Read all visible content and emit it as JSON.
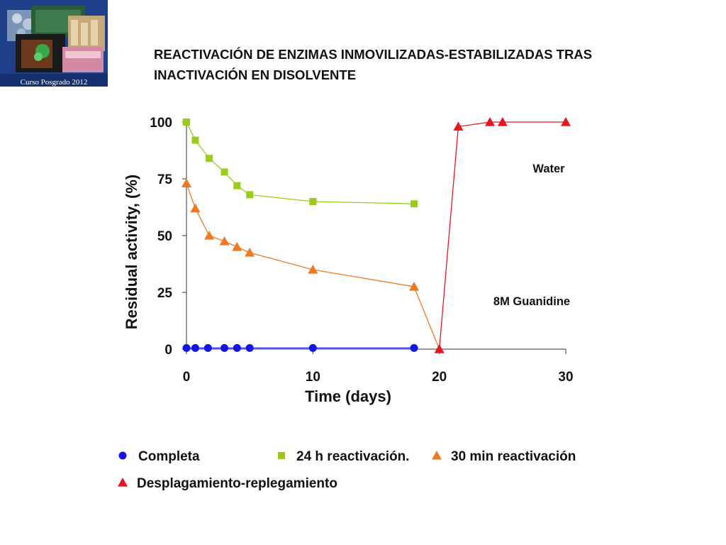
{
  "logo": {
    "caption": "Curso Posgrado 2012"
  },
  "title": {
    "line1": "REACTIVACIÓN DE ENZIMAS INMOVILIZADAS-ESTABILIZADAS TRAS",
    "line2": "INACTIVACIÓN EN DISOLVENTE"
  },
  "colors": {
    "blue": "#1414e6",
    "green": "#99cc1a",
    "orange": "#f07820",
    "red": "#e8141e"
  },
  "chart_data": {
    "type": "line",
    "title": "",
    "xlabel": "Time (days)",
    "ylabel": "Residual activity, (%)",
    "xlim": [
      0,
      30
    ],
    "ylim": [
      0,
      100
    ],
    "xticks": [
      "0",
      "10",
      "20",
      "30"
    ],
    "yticks": [
      "0",
      "25",
      "50",
      "75",
      "100"
    ],
    "annotations": [
      "Water",
      "8M Guanidine"
    ],
    "series": [
      {
        "name": "Completa",
        "marker": "circle",
        "color": "#1414e6",
        "x": [
          0,
          0.7,
          1.7,
          3,
          4,
          5,
          10,
          18
        ],
        "y": [
          0.5,
          0.5,
          0.5,
          0.5,
          0.5,
          0.5,
          0.5,
          0.5
        ]
      },
      {
        "name": "24 h reactivación.",
        "marker": "square",
        "color": "#99cc1a",
        "x": [
          0,
          0.7,
          1.8,
          3,
          4,
          5,
          10,
          18
        ],
        "y": [
          100,
          92,
          84,
          78,
          72,
          68,
          65,
          64
        ]
      },
      {
        "name": "30 min reactivación",
        "marker": "triangle",
        "color": "#f07820",
        "x": [
          0,
          0.7,
          1.8,
          3,
          4,
          5,
          10,
          18,
          20
        ],
        "y": [
          73,
          62,
          50,
          47.5,
          45,
          42.5,
          35,
          27.5,
          0
        ]
      },
      {
        "name": "Desplagamiento-replegamiento",
        "marker": "triangle",
        "color": "#e8141e",
        "x": [
          20,
          21.5,
          24,
          25,
          30
        ],
        "y": [
          0,
          98,
          100,
          100,
          100
        ]
      }
    ]
  }
}
